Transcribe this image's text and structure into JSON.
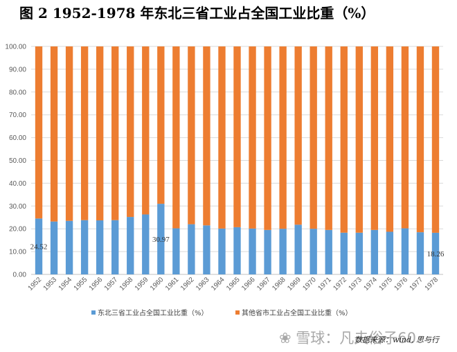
{
  "title": "图 2    1952-1978 年东北三省工业占全国工业比重（%）",
  "watermark": "❀ 雪球：凡夫俗子60",
  "source": "数据来源：wind, 思与行",
  "colors": {
    "series1": "#5b9bd5",
    "series2": "#ed7d31",
    "grid": "#d9d9d9",
    "axis": "#bfbfbf"
  },
  "chart_data": {
    "type": "bar",
    "stacked": true,
    "categories": [
      "1952",
      "1953",
      "1954",
      "1955",
      "1956",
      "1957",
      "1958",
      "1959",
      "1960",
      "1961",
      "1962",
      "1963",
      "1964",
      "1965",
      "1966",
      "1967",
      "1968",
      "1969",
      "1970",
      "1971",
      "1972",
      "1973",
      "1974",
      "1975",
      "1976",
      "1977",
      "1978"
    ],
    "series": [
      {
        "name": "东北三省工业占全国工业比重（%）",
        "values": [
          24.52,
          23.2,
          23.5,
          23.8,
          23.7,
          23.8,
          25.2,
          26.3,
          30.97,
          20.2,
          22.0,
          21.5,
          20.1,
          20.7,
          20.1,
          19.5,
          20.0,
          21.8,
          20.0,
          19.5,
          18.3,
          18.3,
          19.5,
          18.7,
          20.2,
          18.5,
          18.26
        ]
      },
      {
        "name": "其他省市工业占全国工业比重（%）",
        "values": [
          75.48,
          76.8,
          76.5,
          76.2,
          76.3,
          76.2,
          74.8,
          73.7,
          69.03,
          79.8,
          78.0,
          78.5,
          79.9,
          79.3,
          79.9,
          80.5,
          80.0,
          78.2,
          80.0,
          80.5,
          81.7,
          81.7,
          80.5,
          81.3,
          79.8,
          81.5,
          81.74
        ]
      }
    ],
    "yticks": [
      "0.00",
      "10.00",
      "20.00",
      "30.00",
      "40.00",
      "50.00",
      "60.00",
      "70.00",
      "80.00",
      "90.00",
      "100.00"
    ],
    "ylim": [
      0,
      100
    ],
    "data_labels": [
      {
        "index": 0,
        "text": "24.52"
      },
      {
        "index": 8,
        "text": "30.97"
      },
      {
        "index": 26,
        "text": "18.26"
      }
    ],
    "legend_position": "bottom",
    "grid": true
  }
}
